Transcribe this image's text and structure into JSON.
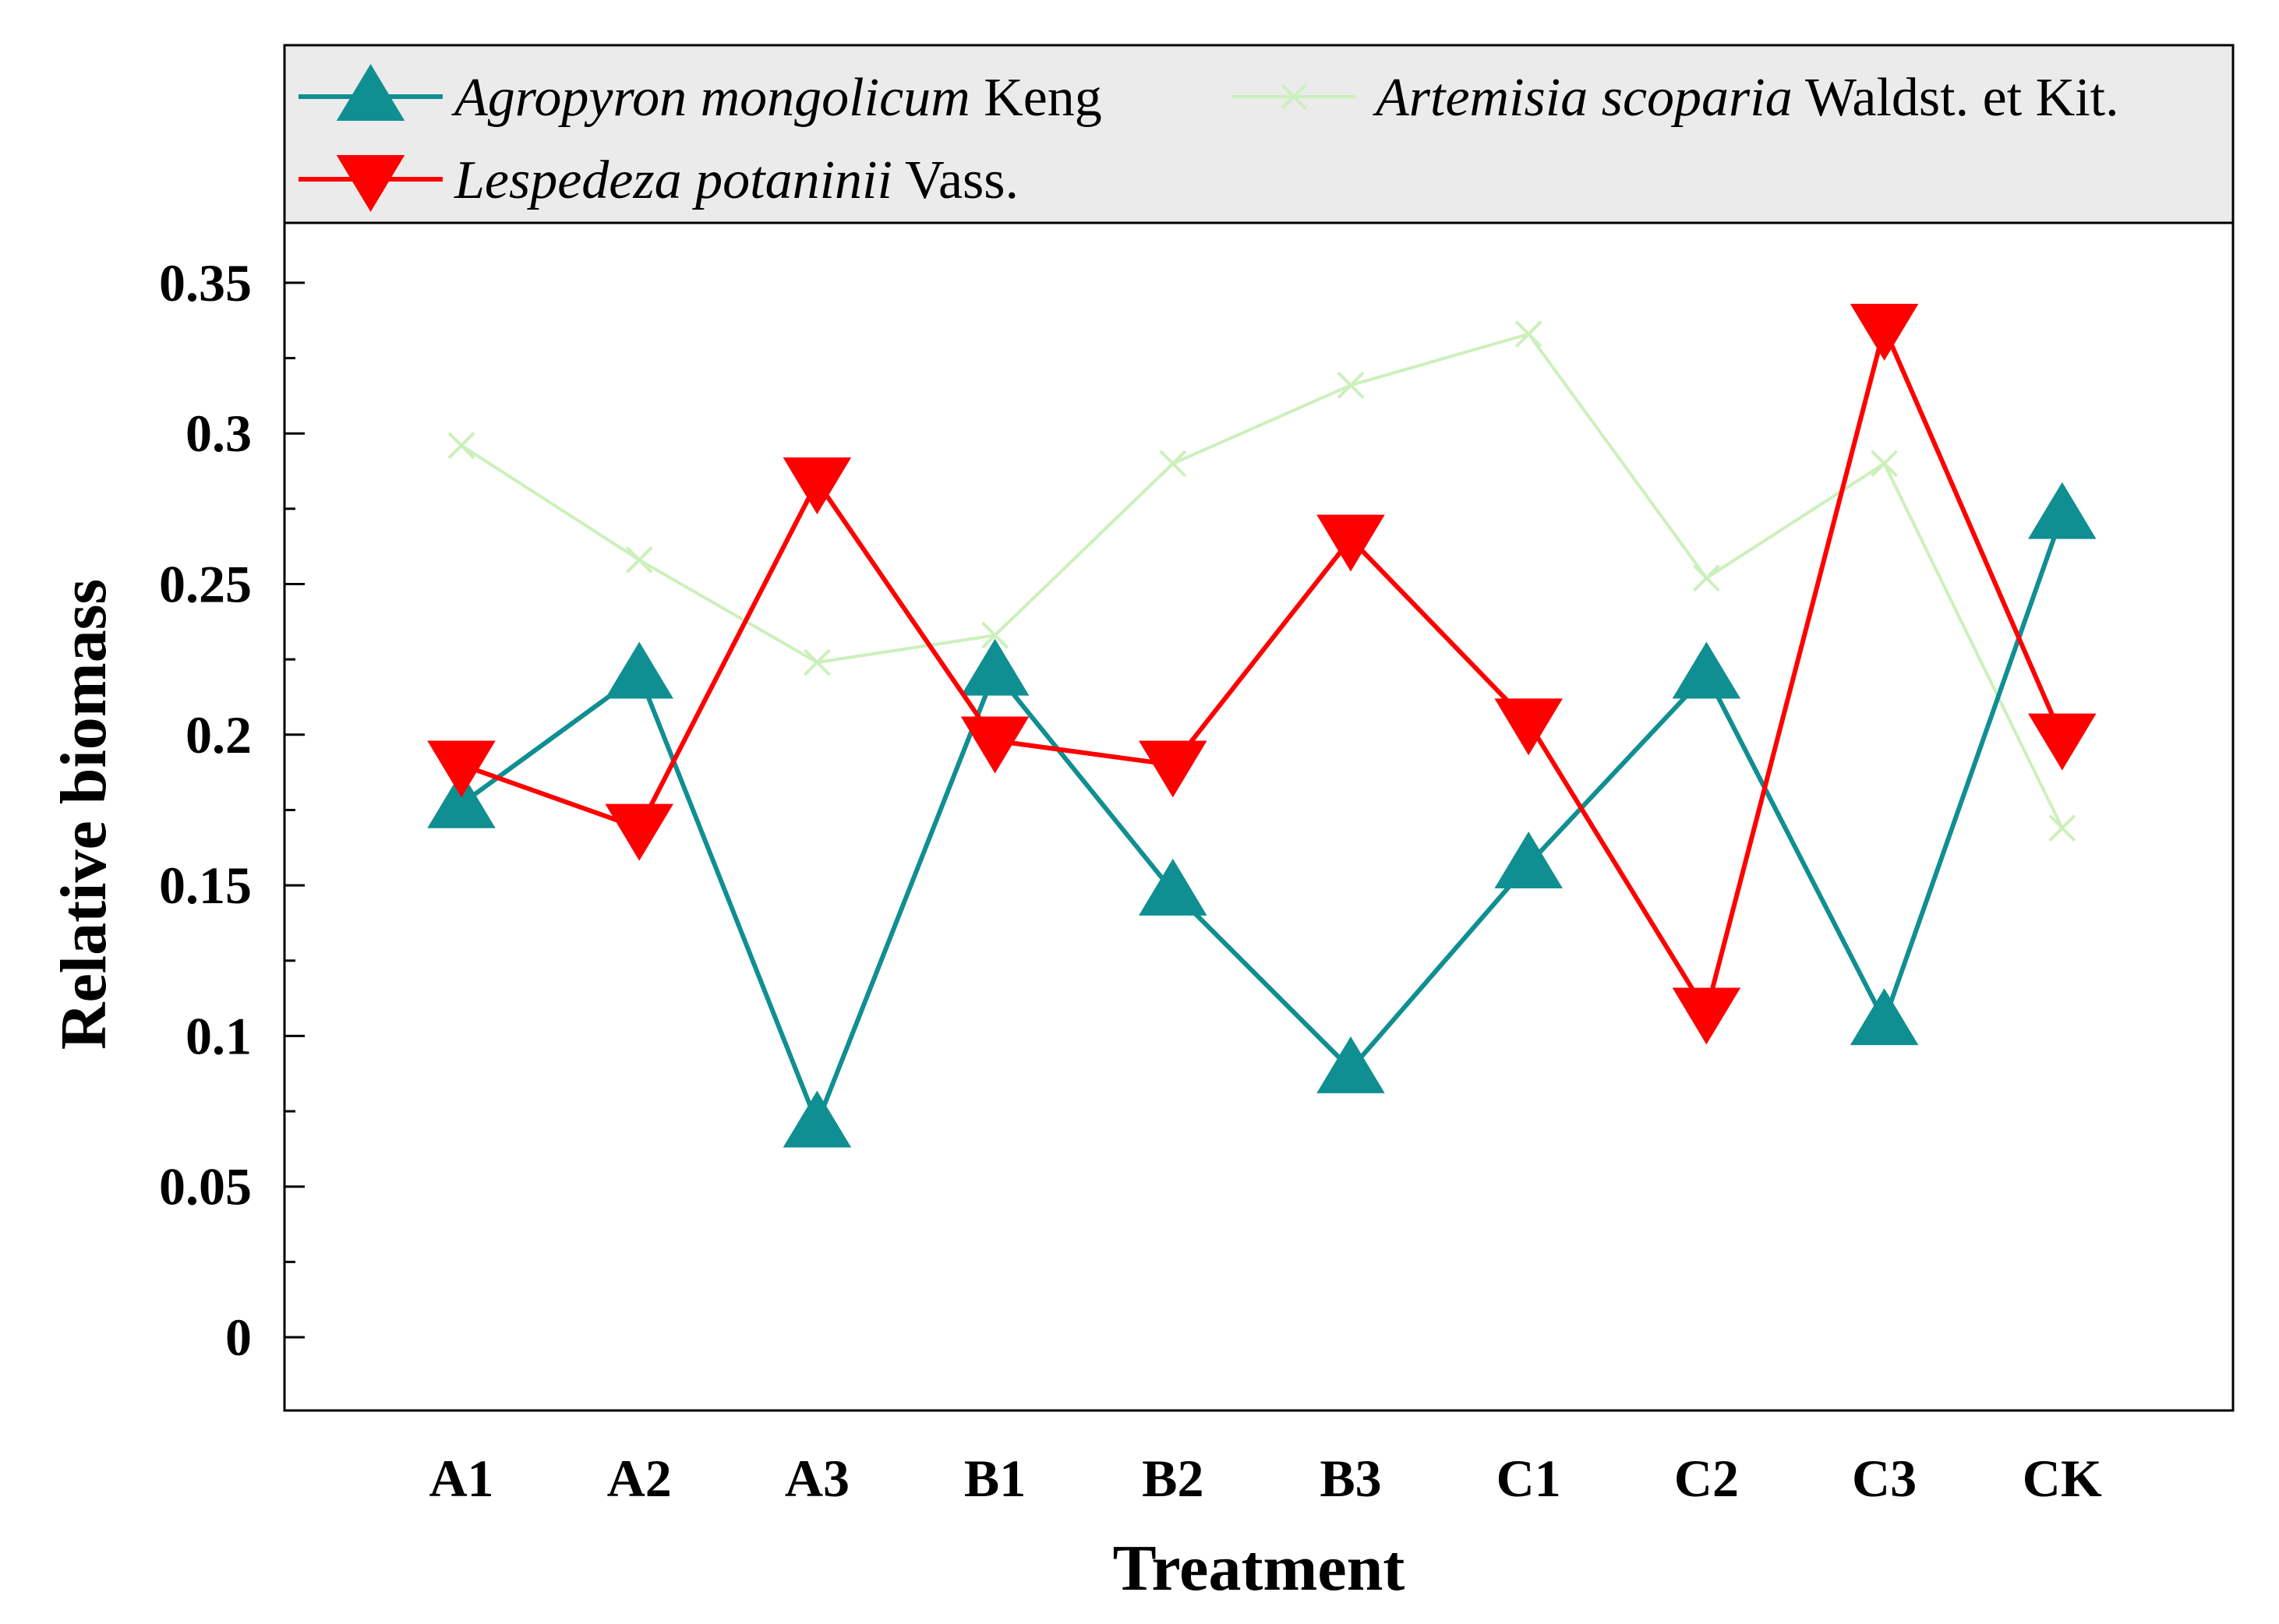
{
  "chart_data": {
    "type": "line",
    "title": "",
    "xlabel": "Treatment",
    "ylabel": "Relative biomass",
    "categories": [
      "A1",
      "A2",
      "A3",
      "B1",
      "B2",
      "B3",
      "C1",
      "C2",
      "C3",
      "CK"
    ],
    "ylim": [
      -0.04,
      0.37
    ],
    "yticks": [
      0,
      0.05,
      0.1,
      0.15,
      0.2,
      0.25,
      0.3,
      0.35
    ],
    "ytick_labels": [
      "0",
      "0.05",
      "0.1",
      "0.15",
      "0.2",
      "0.25",
      "0.3",
      "0.35"
    ],
    "legend_position": "top",
    "series": [
      {
        "name": "Agropyron mongolicum Keng",
        "name_italic": "Agropyron mongolicum",
        "name_plain": " Keng",
        "color": "#108f92",
        "marker": "triangle-up",
        "values": [
          0.177,
          0.22,
          0.071,
          0.221,
          0.148,
          0.089,
          0.157,
          0.22,
          0.105,
          0.273
        ]
      },
      {
        "name": "Artemisia scoparia Waldst. et Kit.",
        "name_italic": "Artemisia scoparia",
        "name_plain": " Waldst. et Kit.",
        "color": "#ccf0bb",
        "marker": "x",
        "values": [
          0.296,
          0.258,
          0.224,
          0.233,
          0.29,
          0.316,
          0.333,
          0.252,
          0.29,
          0.169
        ]
      },
      {
        "name": "Lespedeza potaninii Vass.",
        "name_italic": "Lespedeza potaninii",
        "name_plain": " Vass.",
        "color": "#ff0000",
        "marker": "triangle-down",
        "values": [
          0.19,
          0.169,
          0.284,
          0.198,
          0.19,
          0.265,
          0.204,
          0.108,
          0.335,
          0.199
        ]
      }
    ]
  }
}
